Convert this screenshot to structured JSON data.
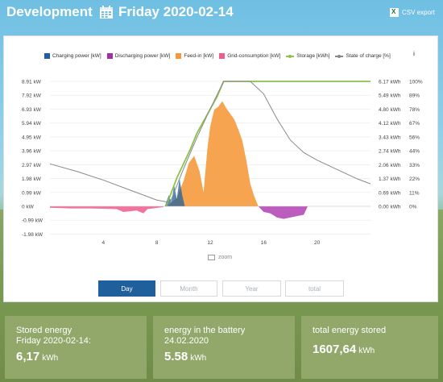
{
  "header": {
    "title": "Development",
    "date": "Friday 2020-02-14",
    "csv_label": "CSV export"
  },
  "legend": [
    {
      "label": "Charging power [kW]",
      "color": "#1f5f9c",
      "kind": "box"
    },
    {
      "label": "Discharging power [kW]",
      "color": "#a02fa0",
      "kind": "box"
    },
    {
      "label": "Feed-in [kW]",
      "color": "#f59a3c",
      "kind": "box"
    },
    {
      "label": "Grid-consumption [kW]",
      "color": "#ee5b8f",
      "kind": "box"
    },
    {
      "label": "Storage [kWh]",
      "color": "#8bc34a",
      "kind": "line"
    },
    {
      "label": "State of charge [%]",
      "color": "#888888",
      "kind": "line"
    }
  ],
  "info_label": "i",
  "zoom_label": "zoom",
  "tabs": [
    "Day",
    "Month",
    "Year",
    "total"
  ],
  "active_tab": "Day",
  "cards": [
    {
      "label_line1": "Stored energy",
      "label_line2": "Friday 2020-02-14:",
      "value": "6,17",
      "unit": "kWh"
    },
    {
      "label_line1": "energy in the battery",
      "label_line2": "24.02.2020",
      "value": "5.58",
      "unit": "kWh"
    },
    {
      "label_line1": "total energy stored",
      "label_line2": "",
      "value": "1607,64",
      "unit": "kWh"
    }
  ],
  "chart_data": {
    "type": "area",
    "x_ticks": [
      4,
      8,
      12,
      16,
      20
    ],
    "xlim": [
      0,
      24
    ],
    "y_left_ticks": [
      "8.91 kW",
      "7.92 kW",
      "6.93 kW",
      "5.94 kW",
      "4.95 kW",
      "3.96 kW",
      "2.97 kW",
      "1.98 kW",
      "0.99 kW",
      "0 kW",
      "-0.99 kW",
      "-1.98 kW"
    ],
    "y_left_values": [
      8.91,
      7.92,
      6.93,
      5.94,
      4.95,
      3.96,
      2.97,
      1.98,
      0.99,
      0,
      -0.99,
      -1.98
    ],
    "y_right_kwh": [
      "6.17 kWh",
      "5.49 kWh",
      "4.80 kWh",
      "4.12 kWh",
      "3.43 kWh",
      "2.74 kWh",
      "2.06 kWh",
      "1.37 kWh",
      "0.69 kWh",
      "0.00 kWh"
    ],
    "y_right_pct": [
      "100%",
      "89%",
      "78%",
      "67%",
      "56%",
      "44%",
      "33%",
      "22%",
      "11%",
      "0%"
    ],
    "ylim_kw": [
      -1.98,
      8.91
    ],
    "series": [
      {
        "name": "Feed-in [kW]",
        "x": [
          8.8,
          9.5,
          10.0,
          10.4,
          10.8,
          11.2,
          11.5,
          11.8,
          12.0,
          12.3,
          12.6,
          12.9,
          13.2,
          13.5,
          13.8,
          14.1,
          14.4,
          14.7,
          15.0,
          15.3,
          15.6
        ],
        "values": [
          0,
          0.6,
          1.8,
          3.1,
          3.6,
          2.5,
          1.0,
          4.2,
          5.7,
          6.9,
          7.1,
          7.5,
          7.0,
          6.6,
          6.2,
          5.5,
          4.7,
          3.3,
          1.6,
          0.7,
          0
        ]
      },
      {
        "name": "Charging power [kW]",
        "x": [
          8.6,
          8.9,
          9.1,
          9.3,
          9.5,
          9.7,
          9.9,
          10.1
        ],
        "values": [
          0,
          0.8,
          0.3,
          1.5,
          0.5,
          2.0,
          0.8,
          0
        ]
      },
      {
        "name": "Discharging power [kW]",
        "x": [
          15.6,
          16.0,
          16.5,
          17.0,
          17.5,
          18.0,
          18.5,
          19.0,
          19.3
        ],
        "values": [
          0,
          -0.4,
          -0.5,
          -0.8,
          -0.9,
          -0.8,
          -0.7,
          -0.6,
          0
        ]
      },
      {
        "name": "Grid-consumption [kW]",
        "x": [
          0,
          1.5,
          3.0,
          5.0,
          5.5,
          6.5,
          7.0,
          7.3,
          8.5
        ],
        "values": [
          -0.1,
          -0.15,
          -0.15,
          -0.2,
          -0.4,
          -0.3,
          -0.5,
          -0.2,
          -0.05
        ]
      },
      {
        "name": "Storage [kWh]",
        "x": [
          8.7,
          9.5,
          10.5,
          11.0,
          11.5,
          12.0,
          12.5,
          13.0,
          13.5,
          24
        ],
        "values": [
          0,
          1.4,
          2.8,
          3.6,
          4.2,
          4.8,
          5.4,
          6.17,
          6.17,
          6.17
        ]
      },
      {
        "name": "State of charge [%]",
        "x": [
          0,
          2,
          4,
          6,
          8,
          9,
          10,
          11,
          12,
          13,
          14,
          15,
          16,
          17,
          18,
          19,
          20,
          21,
          22,
          23,
          24
        ],
        "values": [
          34,
          28,
          21,
          13,
          5,
          3,
          30,
          55,
          78,
          100,
          100,
          100,
          90,
          70,
          53,
          43,
          37,
          32,
          27,
          22,
          18
        ]
      }
    ]
  }
}
